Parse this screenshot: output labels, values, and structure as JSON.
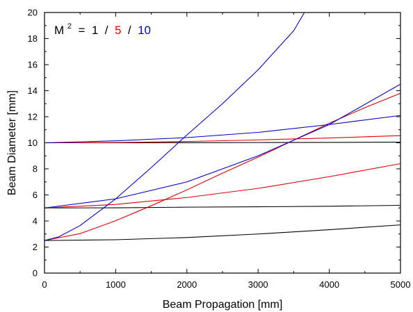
{
  "chart_data": {
    "type": "line",
    "xlabel": "Beam Propagation [mm]",
    "ylabel": "Beam Diameter [mm]",
    "xlim": [
      0,
      5000
    ],
    "ylim": [
      0,
      20
    ],
    "xticks": [
      "0",
      "1000",
      "2000",
      "3000",
      "4000",
      "5000"
    ],
    "yticks": [
      "0",
      "2",
      "4",
      "6",
      "8",
      "10",
      "12",
      "14",
      "16",
      "18",
      "20"
    ],
    "grid": false,
    "legend": {
      "position": "top-left",
      "prefix": "M",
      "superscript": "2",
      "equals": " = ",
      "separator": " / ",
      "entries": [
        {
          "label": "1",
          "color": "#000000"
        },
        {
          "label": "5",
          "color": "#e00000"
        },
        {
          "label": "10",
          "color": "#0000cc"
        }
      ]
    },
    "series": [
      {
        "m2": 1,
        "waist": 2.5,
        "color": "#000000",
        "x": [
          0,
          1000,
          2000,
          3000,
          4000,
          5000
        ],
        "y": [
          2.5,
          2.56,
          2.73,
          3.0,
          3.33,
          3.7
        ]
      },
      {
        "m2": 1,
        "waist": 5,
        "color": "#000000",
        "x": [
          0,
          1000,
          2000,
          3000,
          4000,
          5000
        ],
        "y": [
          5.0,
          5.01,
          5.06,
          5.09,
          5.13,
          5.2
        ]
      },
      {
        "m2": 1,
        "waist": 10,
        "color": "#000000",
        "x": [
          0,
          1000,
          2000,
          3000,
          4000,
          5000
        ],
        "y": [
          10.0,
          10.0,
          10.01,
          10.02,
          10.03,
          10.05
        ]
      },
      {
        "m2": 5,
        "waist": 2.5,
        "color": "#e00000",
        "x": [
          0,
          500,
          1000,
          1500,
          2000,
          2500,
          3000,
          3500,
          4000,
          4500,
          5000
        ],
        "y": [
          2.5,
          3.03,
          4.02,
          5.17,
          6.39,
          7.67,
          8.9,
          10.2,
          11.5,
          12.7,
          13.8
        ]
      },
      {
        "m2": 5,
        "waist": 5,
        "color": "#e00000",
        "x": [
          0,
          1000,
          2000,
          3000,
          4000,
          5000
        ],
        "y": [
          5.0,
          5.27,
          5.8,
          6.5,
          7.4,
          8.4
        ]
      },
      {
        "m2": 5,
        "waist": 10,
        "color": "#e00000",
        "x": [
          0,
          1000,
          2000,
          3000,
          4000,
          5000
        ],
        "y": [
          10.0,
          10.02,
          10.1,
          10.22,
          10.37,
          10.55
        ]
      },
      {
        "m2": 10,
        "waist": 2.5,
        "color": "#0000cc",
        "x": [
          0,
          200,
          500,
          1000,
          1500,
          2000,
          2500,
          3000,
          3500,
          3650
        ],
        "y": [
          2.5,
          2.78,
          3.65,
          5.7,
          8.1,
          10.6,
          13.0,
          15.6,
          18.6,
          20.0
        ]
      },
      {
        "m2": 10,
        "waist": 5,
        "color": "#0000cc",
        "x": [
          0,
          1000,
          2000,
          3000,
          4000,
          5000
        ],
        "y": [
          5.0,
          5.7,
          7.0,
          9.0,
          11.4,
          14.5
        ]
      },
      {
        "m2": 10,
        "waist": 10,
        "color": "#0000cc",
        "x": [
          0,
          1000,
          2000,
          3000,
          4000,
          5000
        ],
        "y": [
          10.0,
          10.15,
          10.4,
          10.8,
          11.4,
          12.1
        ]
      }
    ]
  }
}
